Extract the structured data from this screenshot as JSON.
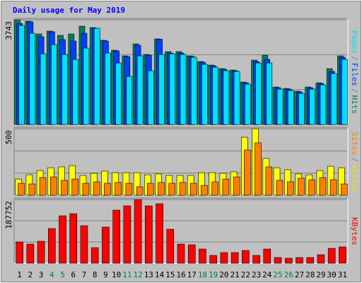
{
  "chart_data": [
    {
      "type": "bar",
      "title": "Daily usage for May 2019",
      "categories": [
        "1",
        "2",
        "3",
        "4",
        "5",
        "6",
        "7",
        "8",
        "9",
        "10",
        "11",
        "12",
        "13",
        "14",
        "15",
        "16",
        "17",
        "18",
        "19",
        "20",
        "21",
        "22",
        "23",
        "24",
        "25",
        "26",
        "27",
        "28",
        "29",
        "30",
        "31"
      ],
      "category_colors": [
        "#000000",
        "#000000",
        "#000000",
        "#008040",
        "#008040",
        "#000000",
        "#000000",
        "#000000",
        "#000000",
        "#000000",
        "#008040",
        "#008040",
        "#000000",
        "#000000",
        "#000000",
        "#000000",
        "#000000",
        "#008040",
        "#008040",
        "#000000",
        "#000000",
        "#000000",
        "#000000",
        "#000000",
        "#008040",
        "#008040",
        "#000000",
        "#000000",
        "#000000",
        "#000000",
        "#000000"
      ],
      "ylim": [
        0,
        3743
      ],
      "yticks": [
        3743
      ],
      "grid": true,
      "legend_separator": "/",
      "series": [
        {
          "name": "Hits",
          "color": "#00805c",
          "values": [
            3743,
            3692,
            3237,
            3338,
            3187,
            3237,
            3515,
            3465,
            3010,
            2655,
            2453,
            2883,
            2504,
            3060,
            2605,
            2605,
            2453,
            2251,
            2124,
            1998,
            1947,
            1517,
            2301,
            2478,
            1340,
            1290,
            1189,
            1340,
            1492,
            1998,
            2453
          ]
        },
        {
          "name": "Files",
          "color": "#0040ff",
          "values": [
            3616,
            3667,
            3136,
            3313,
            3035,
            2984,
            3262,
            3439,
            2984,
            2630,
            2428,
            2832,
            2478,
            3050,
            2554,
            2554,
            2428,
            2226,
            2099,
            1973,
            1922,
            1492,
            2251,
            2327,
            1315,
            1265,
            1163,
            1315,
            1467,
            1897,
            2403
          ]
        },
        {
          "name": "Pages",
          "color": "#00e0ff",
          "values": [
            3541,
            3262,
            2529,
            2858,
            2504,
            2327,
            2731,
            3439,
            2554,
            2200,
            1720,
            2453,
            1922,
            2504,
            2529,
            2504,
            2403,
            2150,
            2048,
            1922,
            1897,
            1442,
            2200,
            2200,
            1265,
            1214,
            1113,
            1265,
            1416,
            1821,
            2327
          ]
        }
      ]
    },
    {
      "type": "bar",
      "ylim": [
        0,
        500
      ],
      "yticks": [
        500
      ],
      "grid": true,
      "legend_separator": "/",
      "series": [
        {
          "name": "Visits",
          "color": "#ffff00",
          "values": [
            122,
            154,
            186,
            207,
            213,
            223,
            149,
            165,
            181,
            170,
            170,
            170,
            154,
            160,
            149,
            149,
            149,
            170,
            170,
            165,
            176,
            436,
            500,
            277,
            207,
            192,
            160,
            154,
            186,
            218,
            207
          ]
        },
        {
          "name": "Sites",
          "color": "#ff8000",
          "values": [
            90,
            85,
            133,
            138,
            112,
            122,
            90,
            101,
            90,
            96,
            90,
            64,
            90,
            96,
            90,
            96,
            90,
            74,
            101,
            122,
            138,
            340,
            394,
            213,
            112,
            101,
            128,
            117,
            133,
            117,
            85
          ]
        }
      ]
    },
    {
      "type": "bar",
      "ylim": [
        0,
        187752
      ],
      "yticks": [
        187752
      ],
      "grid": true,
      "series": [
        {
          "name": "KBytes",
          "color": "#ff0000",
          "values": [
            62580,
            56322,
            64666,
            102214,
            139762,
            146020,
            110558,
            45892,
            106386,
            156452,
            168968,
            187752,
            168968,
            175226,
            100128,
            56322,
            54236,
            41720,
            22946,
            31290,
            31290,
            37548,
            22946,
            41720,
            16688,
            14602,
            16688,
            16688,
            25032,
            43806,
            47978
          ]
        }
      ]
    }
  ]
}
